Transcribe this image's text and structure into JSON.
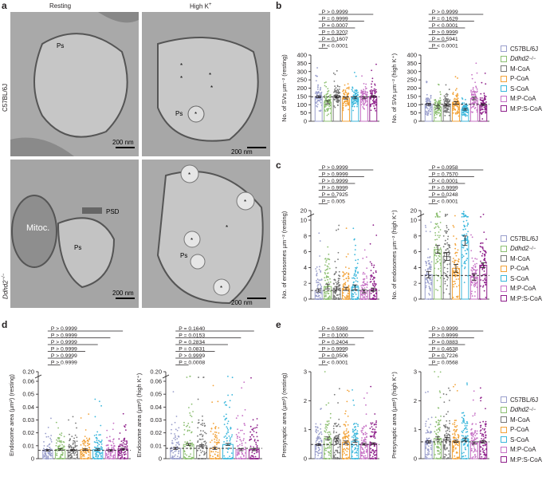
{
  "panels": {
    "a": "a",
    "b": "b",
    "c": "c",
    "d": "d",
    "e": "e"
  },
  "em": {
    "col_resting": "Resting",
    "col_highk": "High K",
    "col_highk_sup": "+",
    "row_wt": "C57BL/6J",
    "row_ko_base": "Ddhd2",
    "row_ko_sup": "−/−",
    "scale": "200 nm",
    "ps": "Ps",
    "psd": "PSD",
    "mitoc": "Mitoc.",
    "star": "*"
  },
  "legend_items": [
    {
      "label": "C57BL/6J",
      "color": "#9a9fcc",
      "italic": false,
      "sup": ""
    },
    {
      "label": "Ddhd2",
      "color": "#8dbf72",
      "italic": true,
      "sup": "−/−"
    },
    {
      "label": "M-CoA",
      "color": "#777777",
      "italic": false,
      "sup": ""
    },
    {
      "label": "P-CoA",
      "color": "#f2a33a",
      "italic": false,
      "sup": ""
    },
    {
      "label": "S-CoA",
      "color": "#3bb7dc",
      "italic": false,
      "sup": ""
    },
    {
      "label": "M:P-CoA",
      "color": "#c773c6",
      "italic": false,
      "sup": ""
    },
    {
      "label": "M:P:S-CoA",
      "color": "#8e1f8a",
      "italic": false,
      "sup": ""
    }
  ],
  "chart_data": [
    {
      "id": "b-resting",
      "type": "bar",
      "ylabel": "No. of SVs µm⁻² (resting)",
      "ylim": [
        0,
        400
      ],
      "yticks": [
        "0",
        "50",
        "100",
        "150",
        "200",
        "250",
        "300",
        "350",
        "400"
      ],
      "values": [
        148,
        115,
        148,
        140,
        142,
        142,
        150
      ],
      "sem": [
        6,
        10,
        6,
        6,
        6,
        6,
        5
      ],
      "spread": [
        95,
        90,
        80,
        85,
        80,
        80,
        100
      ],
      "baseline": 148,
      "comparisons": [
        "P > 0.9999",
        "P = 0.9999",
        "P = 0.0007",
        "P = 0.3202",
        "P = 0.1607",
        "P < 0.0001"
      ]
    },
    {
      "id": "b-highk",
      "type": "bar",
      "ylabel": "No. of SVs µm⁻² (high K⁺)",
      "ylim": [
        0,
        400
      ],
      "yticks": [
        "0",
        "50",
        "100",
        "150",
        "200",
        "250",
        "300",
        "350",
        "400"
      ],
      "values": [
        102,
        85,
        100,
        110,
        72,
        138,
        100
      ],
      "sem": [
        6,
        8,
        6,
        8,
        5,
        8,
        5
      ],
      "spread": [
        90,
        70,
        85,
        90,
        50,
        110,
        95
      ],
      "baseline": 102,
      "comparisons": [
        "P > 0.9999",
        "P = 0.1629",
        "P < 0.0001",
        "P > 0.9999",
        "P = 0.5941",
        "P < 0.0001"
      ]
    },
    {
      "id": "c-resting",
      "type": "bar",
      "ylabel": "No. of endosomes µm⁻² (resting)",
      "ylim": [
        0,
        20
      ],
      "yticks": [
        "0",
        "2",
        "4",
        "6",
        "8",
        "10",
        "20"
      ],
      "broken": true,
      "values": [
        1.1,
        1.6,
        1.4,
        1.3,
        1.5,
        1.0,
        1.2
      ],
      "sem": [
        0.2,
        0.3,
        0.2,
        0.2,
        0.3,
        0.2,
        0.2
      ],
      "spread": [
        4,
        5,
        4,
        4,
        5,
        3,
        5
      ],
      "baseline": 1.1,
      "comparisons": [
        "P > 0.9999",
        "P > 0.9999",
        "P > 0.9999",
        "P > 0.9999",
        "P = 0.7925",
        "P = 0.005"
      ]
    },
    {
      "id": "c-highk",
      "type": "bar",
      "ylabel": "No. of endosomes µm⁻² (high K⁺)",
      "ylim": [
        0,
        20
      ],
      "yticks": [
        "0",
        "2",
        "4",
        "6",
        "8",
        "10",
        "20"
      ],
      "broken": true,
      "values": [
        3.1,
        6.3,
        5.4,
        3.9,
        7.4,
        2.8,
        4.3
      ],
      "sem": [
        0.4,
        0.5,
        0.5,
        0.5,
        0.6,
        0.4,
        0.3
      ],
      "spread": [
        4,
        6,
        5,
        4,
        6,
        3,
        5
      ],
      "baseline": 3.0,
      "comparisons": [
        "P = 0.0958",
        "P = 0.7570",
        "P < 0.0001",
        "P > 0.9999",
        "P = 0.0248",
        "P < 0.0001"
      ]
    },
    {
      "id": "d-resting",
      "type": "bar",
      "ylabel": "Endosome area (µm²) (resting)",
      "ylim": [
        0,
        0.2
      ],
      "yticks": [
        "0",
        "0.01",
        "0.02",
        "0.03",
        "0.04",
        "0.05",
        "0.06",
        "0.20"
      ],
      "broken": true,
      "values": [
        0.0065,
        0.0072,
        0.0066,
        0.007,
        0.007,
        0.0064,
        0.0075
      ],
      "sem": [
        0.0006,
        0.0006,
        0.0006,
        0.0006,
        0.0006,
        0.0006,
        0.0006
      ],
      "spread": [
        0.014,
        0.015,
        0.014,
        0.014,
        0.02,
        0.012,
        0.014
      ],
      "baseline": 0.0065,
      "comparisons": [
        "P > 0.9999",
        "P > 0.9999",
        "P > 0.9999",
        "P > 0.9999",
        "P > 0.9999",
        "P > 0.9999"
      ]
    },
    {
      "id": "d-highk",
      "type": "bar",
      "ylabel": "Endosome area (µm²) (high K⁺)",
      "ylim": [
        0,
        0.2
      ],
      "yticks": [
        "0",
        "0.01",
        "0.02",
        "0.03",
        "0.04",
        "0.05",
        "0.06",
        "0.20"
      ],
      "broken": true,
      "values": [
        0.008,
        0.011,
        0.01,
        0.008,
        0.011,
        0.007,
        0.007
      ],
      "sem": [
        0.0008,
        0.0008,
        0.0008,
        0.0008,
        0.0008,
        0.0008,
        0.0008
      ],
      "spread": [
        0.03,
        0.045,
        0.035,
        0.03,
        0.048,
        0.03,
        0.03
      ],
      "baseline": 0.008,
      "comparisons": [
        "P = 0.1640",
        "P = 0.0153",
        "P = 0.2834",
        "P = 0.0831",
        "P > 0.9999",
        "P = 0.0008"
      ]
    },
    {
      "id": "e-resting",
      "type": "bar",
      "ylabel": "Presynaptic area (µm²) (resting)",
      "ylim": [
        0,
        3
      ],
      "yticks": [
        "0",
        "1",
        "2",
        "3"
      ],
      "values": [
        0.48,
        0.7,
        0.65,
        0.57,
        0.6,
        0.5,
        0.52
      ],
      "sem": [
        0.03,
        0.05,
        0.05,
        0.04,
        0.04,
        0.03,
        0.03
      ],
      "spread": [
        0.9,
        1.5,
        1.2,
        1.2,
        1.0,
        0.9,
        1.0
      ],
      "baseline": 0.49,
      "comparisons": [
        "P = 0.5989",
        "P = 0.1000",
        "P = 0.2404",
        "P > 0.9999",
        "P = 0.0506",
        "P < 0.0001"
      ]
    },
    {
      "id": "e-highk",
      "type": "bar",
      "ylabel": "Presynaptic area (µm²) (high K⁺)",
      "ylim": [
        0,
        3
      ],
      "yticks": [
        "0",
        "1",
        "2",
        "3"
      ],
      "values": [
        0.58,
        0.7,
        0.68,
        0.6,
        0.66,
        0.54,
        0.58
      ],
      "sem": [
        0.04,
        0.05,
        0.05,
        0.04,
        0.05,
        0.04,
        0.04
      ],
      "spread": [
        0.9,
        1.2,
        1.1,
        1.0,
        1.1,
        0.9,
        1.0
      ],
      "baseline": 0.58,
      "comparisons": [
        "P > 0.9999",
        "P > 0.9999",
        "P = 0.0883",
        "P = 0.4638",
        "P = 0.7226",
        "P = 0.0568"
      ]
    }
  ]
}
